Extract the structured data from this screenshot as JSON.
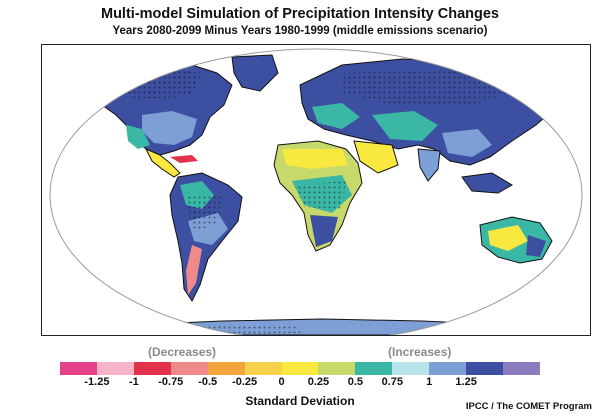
{
  "header": {
    "title": "Multi-model Simulation of Precipitation Intensity Changes",
    "subtitle": "Years 2080-2099 Minus Years 1980-1999 (middle emissions scenario)"
  },
  "legend": {
    "decreases_label": "(Decreases)",
    "increases_label": "(Increases)",
    "axis_title": "Standard Deviation",
    "colors": [
      "#e8418c",
      "#f7b4c8",
      "#e2314b",
      "#f08a8a",
      "#f3a43a",
      "#f6d24a",
      "#f8e840",
      "#c6d96a",
      "#3bb7a6",
      "#b9e2ea",
      "#7e9fd6",
      "#3d4fa1",
      "#8d7bbf"
    ],
    "ticks": [
      "-1.25",
      "-1",
      "-0.75",
      "-0.5",
      "-0.25",
      "0",
      "0.25",
      "0.5",
      "0.75",
      "1",
      "1.25"
    ]
  },
  "credit": "IPCC / The COMET Program"
}
